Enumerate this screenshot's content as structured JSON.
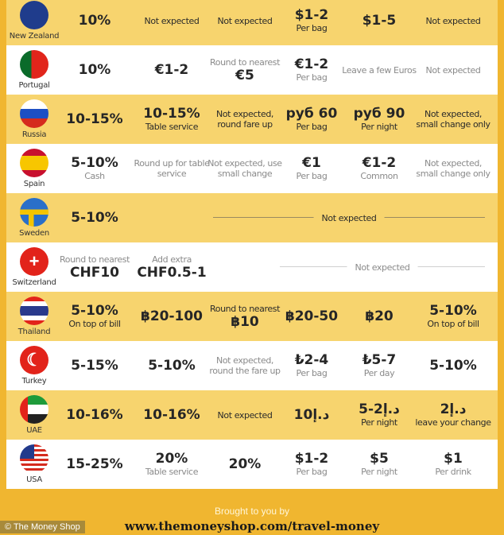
{
  "columns_x_note": "",
  "rows": [
    {
      "country": "New Zealand",
      "flag": "new-zealand",
      "bg": "yellow",
      "cells": [
        {
          "main": "10%"
        },
        {
          "small_top": "Not expected"
        },
        {
          "small_top": "Not expected"
        },
        {
          "main": "$1-2",
          "sub": "Per bag"
        },
        {
          "main": "$1-5"
        },
        {
          "small_top": "Not expected"
        }
      ]
    },
    {
      "country": "Portugal",
      "flag": "portugal",
      "bg": "white",
      "cells": [
        {
          "main": "10%"
        },
        {
          "main": "€1-2"
        },
        {
          "small_top": "Round to nearest",
          "main": "€5"
        },
        {
          "main": "€1-2",
          "sub": "Per bag"
        },
        {
          "small_top": "Leave a few Euros"
        },
        {
          "small_top": "Not expected"
        }
      ]
    },
    {
      "country": "Russia",
      "flag": "russia",
      "bg": "yellow",
      "cells": [
        {
          "main": "10-15%"
        },
        {
          "main": "10-15%",
          "sub": "Table service"
        },
        {
          "small_top": "Not expected, round fare up"
        },
        {
          "main": "руб 60",
          "sub": "Per bag"
        },
        {
          "main": "руб 90",
          "sub": "Per night"
        },
        {
          "small_top": "Not expected, small change only"
        }
      ]
    },
    {
      "country": "Spain",
      "flag": "spain",
      "bg": "white",
      "cells": [
        {
          "main": "5-10%",
          "sub": "Cash"
        },
        {
          "small_top": "Round up for table service"
        },
        {
          "small_top": "Not expected, use small change"
        },
        {
          "main": "€1",
          "sub": "Per bag"
        },
        {
          "main": "€1-2",
          "sub": "Common"
        },
        {
          "small_top": "Not expected, small change only"
        }
      ]
    },
    {
      "country": "Sweden",
      "flag": "sweden",
      "bg": "yellow",
      "cells": [
        {
          "main": "5-10%"
        }
      ],
      "span": {
        "label": "Not expected",
        "from": 2
      }
    },
    {
      "country": "Switzerland",
      "flag": "switzerland",
      "bg": "white",
      "cells": [
        {
          "small_top": "Round to nearest",
          "main": "CHF10"
        },
        {
          "small_top": "Add extra",
          "main": "CHF0.5-1"
        }
      ],
      "span": {
        "label": "Not expected",
        "from": 3
      }
    },
    {
      "country": "Thailand",
      "flag": "thailand",
      "bg": "yellow",
      "cells": [
        {
          "main": "5-10%",
          "sub": "On top of bill"
        },
        {
          "main": "฿20-100"
        },
        {
          "small_top": "Round to nearest",
          "main": "฿10"
        },
        {
          "main": "฿20-50"
        },
        {
          "main": "฿20"
        },
        {
          "main": "5-10%",
          "sub": "On top of bill"
        }
      ]
    },
    {
      "country": "Turkey",
      "flag": "turkey",
      "bg": "white",
      "cells": [
        {
          "main": "5-15%"
        },
        {
          "main": "5-10%"
        },
        {
          "small_top": "Not expected, round the fare up"
        },
        {
          "main": "₺2-4",
          "sub": "Per bag"
        },
        {
          "main": "₺5-7",
          "sub": "Per day"
        },
        {
          "main": "5-10%"
        }
      ]
    },
    {
      "country": "UAE",
      "flag": "uae",
      "bg": "yellow",
      "cells": [
        {
          "main": "10-16%"
        },
        {
          "main": "10-16%"
        },
        {
          "small_top": "Not expected"
        },
        {
          "main": "د.إ10"
        },
        {
          "main": "د.إ2-5",
          "sub": "Per night"
        },
        {
          "main": "د.إ2",
          "sub": "leave your change"
        }
      ]
    },
    {
      "country": "USA",
      "flag": "usa",
      "bg": "white",
      "cells": [
        {
          "main": "15-25%"
        },
        {
          "main": "20%",
          "sub": "Table service"
        },
        {
          "main": "20%"
        },
        {
          "main": "$1-2",
          "sub": "Per bag"
        },
        {
          "main": "$5",
          "sub": "Per night"
        },
        {
          "main": "$1",
          "sub": "Per drink"
        }
      ]
    }
  ],
  "footer": {
    "brought": "Brought to you by",
    "url": "www.themoneyshop.com/travel-money",
    "credit": "© The Money Shop"
  },
  "colors": {
    "border": "#f0b630",
    "yellow_row": "#f7d46e",
    "white_row": "#ffffff",
    "text": "#262626"
  }
}
